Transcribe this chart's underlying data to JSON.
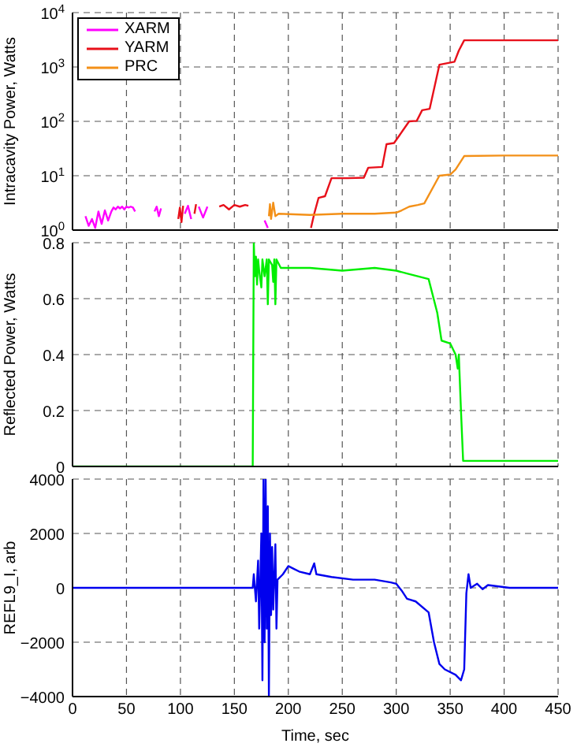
{
  "chart_data": [
    {
      "type": "line",
      "ylabel": "Intracavity Power, Watts",
      "log": true,
      "grid": true,
      "legend": "top left",
      "tick_labels": "y",
      "xlim": [
        0,
        450
      ],
      "xticks": [
        0,
        50,
        100,
        150,
        200,
        250,
        300,
        350,
        400,
        450
      ],
      "ylim": [
        1,
        10000
      ],
      "yticks": [
        {
          "value": 1,
          "label": "10$^{0}$"
        },
        {
          "value": 10,
          "label": "10$^{1}$"
        },
        {
          "value": 100,
          "label": "10$^{2}$"
        },
        {
          "value": 1000,
          "label": "10$^{3}$"
        },
        {
          "value": 10000,
          "label": "10$^{4}$"
        }
      ],
      "series": [
        {
          "name": "XARM",
          "color": "#ff00ff",
          "x": [
            12,
            15,
            18,
            21,
            24,
            27,
            30,
            33,
            36,
            38,
            40,
            42,
            44,
            46,
            48,
            50,
            52,
            54,
            56,
            58,
            59,
            76,
            78,
            80,
            82,
            83,
            104,
            107,
            110,
            111,
            117,
            121,
            125,
            126,
            178,
            181
          ],
          "values": [
            1.8,
            1.2,
            1.6,
            1.1,
            2.2,
            1.3,
            2.3,
            1.5,
            2.2,
            2.6,
            2.4,
            2.7,
            2.5,
            2.7,
            2.4,
            2.7,
            2.6,
            2.7,
            2.6,
            2.2,
            null,
            2.2,
            2.7,
            1.8,
            2.5,
            null,
            2.0,
            2.8,
            1.6,
            null,
            2.7,
            1.7,
            2.7,
            null,
            1.5,
            1.1
          ]
        },
        {
          "name": "YARM",
          "color": "#e8101a",
          "x": [
            98,
            99.5,
            101,
            102.5,
            103,
            113,
            114.5,
            115.5,
            136,
            140,
            145,
            150,
            155,
            160,
            163,
            164,
            221,
            224,
            228,
            234,
            240,
            255,
            270,
            274,
            287,
            291,
            298,
            312,
            319,
            324,
            331,
            340,
            354,
            358,
            363,
            400,
            450
          ],
          "values": [
            1.6,
            2.6,
            1.4,
            2.8,
            null,
            2.0,
            3.0,
            null,
            2.7,
            2.9,
            2.4,
            2.9,
            2.7,
            2.9,
            2.8,
            null,
            1.1,
            2.0,
            3.9,
            4.2,
            9,
            9,
            9.2,
            14,
            14.5,
            38,
            40,
            100,
            102,
            160,
            170,
            1100,
            1250,
            2000,
            3100,
            3100,
            3100
          ]
        },
        {
          "name": "PRC",
          "color": "#f39018",
          "x": [
            182,
            183,
            184,
            186,
            188,
            191,
            220,
            250,
            280,
            300,
            305,
            312,
            320,
            326,
            340,
            350,
            355,
            363,
            400,
            450
          ],
          "values": [
            1.8,
            3.0,
            1.6,
            3.2,
            1.8,
            2.0,
            1.9,
            2.0,
            2.0,
            2.1,
            2.3,
            2.7,
            2.9,
            3.1,
            10,
            10.5,
            13,
            23,
            23.5,
            23.5
          ]
        }
      ]
    },
    {
      "type": "line",
      "ylabel": "Reflected Power, Watts",
      "grid": true,
      "tick_labels": "y",
      "xlim": [
        0,
        450
      ],
      "xticks": [
        0,
        50,
        100,
        150,
        200,
        250,
        300,
        350,
        400,
        450
      ],
      "ylim": [
        0,
        0.8
      ],
      "yticks": [
        0,
        0.2,
        0.4,
        0.6,
        0.8
      ],
      "series": [
        {
          "color": "#00ee00",
          "x": [
            0,
            167,
            168,
            169,
            170,
            171,
            172,
            173,
            175,
            176,
            178,
            180,
            181,
            182,
            185,
            186,
            187,
            188,
            189,
            193,
            220,
            250,
            280,
            300,
            310,
            330,
            338,
            342,
            350,
            355,
            357,
            358,
            360,
            362,
            450
          ],
          "values": [
            0,
            0,
            0.8,
            0.68,
            0.75,
            0.65,
            0.74,
            0.7,
            0.64,
            0.74,
            0.68,
            0.74,
            0.58,
            0.74,
            0.72,
            0.66,
            0.74,
            0.58,
            0.74,
            0.71,
            0.71,
            0.7,
            0.71,
            0.7,
            0.69,
            0.67,
            0.55,
            0.45,
            0.44,
            0.4,
            0.35,
            0.4,
            0.2,
            0.02,
            0.02
          ]
        }
      ]
    },
    {
      "type": "line",
      "ylabel": "REFL9_I, arb",
      "xlabel": "Time, sec",
      "grid": true,
      "xlim": [
        0,
        450
      ],
      "xticks": [
        0,
        50,
        100,
        150,
        200,
        250,
        300,
        350,
        400,
        450
      ],
      "ylim": [
        -4000,
        4000
      ],
      "yticks": [
        -4000,
        -2000,
        0,
        2000,
        4000
      ],
      "series": [
        {
          "color": "#0000ee",
          "x": [
            0,
            167,
            168,
            170,
            172,
            173,
            175,
            176,
            177,
            178,
            179,
            180,
            181,
            182,
            183,
            184,
            185,
            186,
            188,
            189,
            190,
            195,
            200,
            205,
            210,
            220,
            224,
            226,
            240,
            260,
            280,
            295,
            300,
            305,
            310,
            318,
            330,
            335,
            340,
            345,
            355,
            360,
            363,
            365,
            367,
            369,
            375,
            380,
            385,
            395,
            405,
            450
          ],
          "values": [
            0,
            0,
            500,
            -500,
            1000,
            -1500,
            2000,
            -3400,
            4000,
            -2000,
            4000,
            -1500,
            3000,
            -4000,
            2000,
            -1000,
            1500,
            -800,
            1600,
            -1500,
            300,
            500,
            800,
            700,
            600,
            500,
            900,
            500,
            400,
            300,
            300,
            200,
            150,
            -100,
            -400,
            -500,
            -900,
            -2000,
            -2800,
            -3000,
            -3200,
            -3400,
            -3000,
            -200,
            500,
            0,
            150,
            -50,
            100,
            50,
            0,
            0
          ]
        }
      ]
    }
  ]
}
